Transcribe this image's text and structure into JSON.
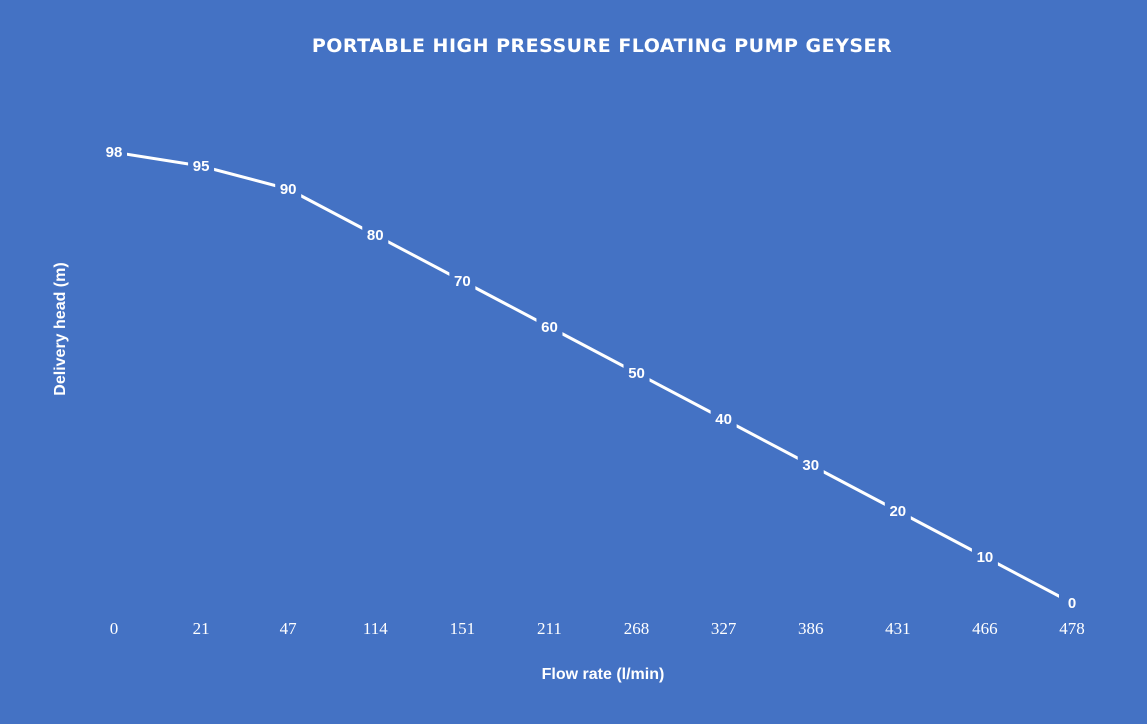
{
  "chart_data": {
    "type": "line",
    "title": "PORTABLE HIGH PRESSURE FLOATING PUMP GEYSER",
    "xlabel": "Flow rate (l/min)",
    "ylabel": "Delivery head (m)",
    "categories": [
      "0",
      "21",
      "47",
      "114",
      "151",
      "211",
      "268",
      "327",
      "386",
      "431",
      "466",
      "478"
    ],
    "series": [
      {
        "values": [
          98,
          95,
          90,
          80,
          70,
          60,
          50,
          40,
          30,
          20,
          10,
          0
        ]
      }
    ],
    "ylim": [
      0,
      100
    ],
    "data_labels": true,
    "drop_lines": true,
    "grid": false,
    "legend": "none",
    "colors": {
      "background": "#4472c4",
      "line": "#ffffff",
      "text": "#ffffff"
    }
  }
}
